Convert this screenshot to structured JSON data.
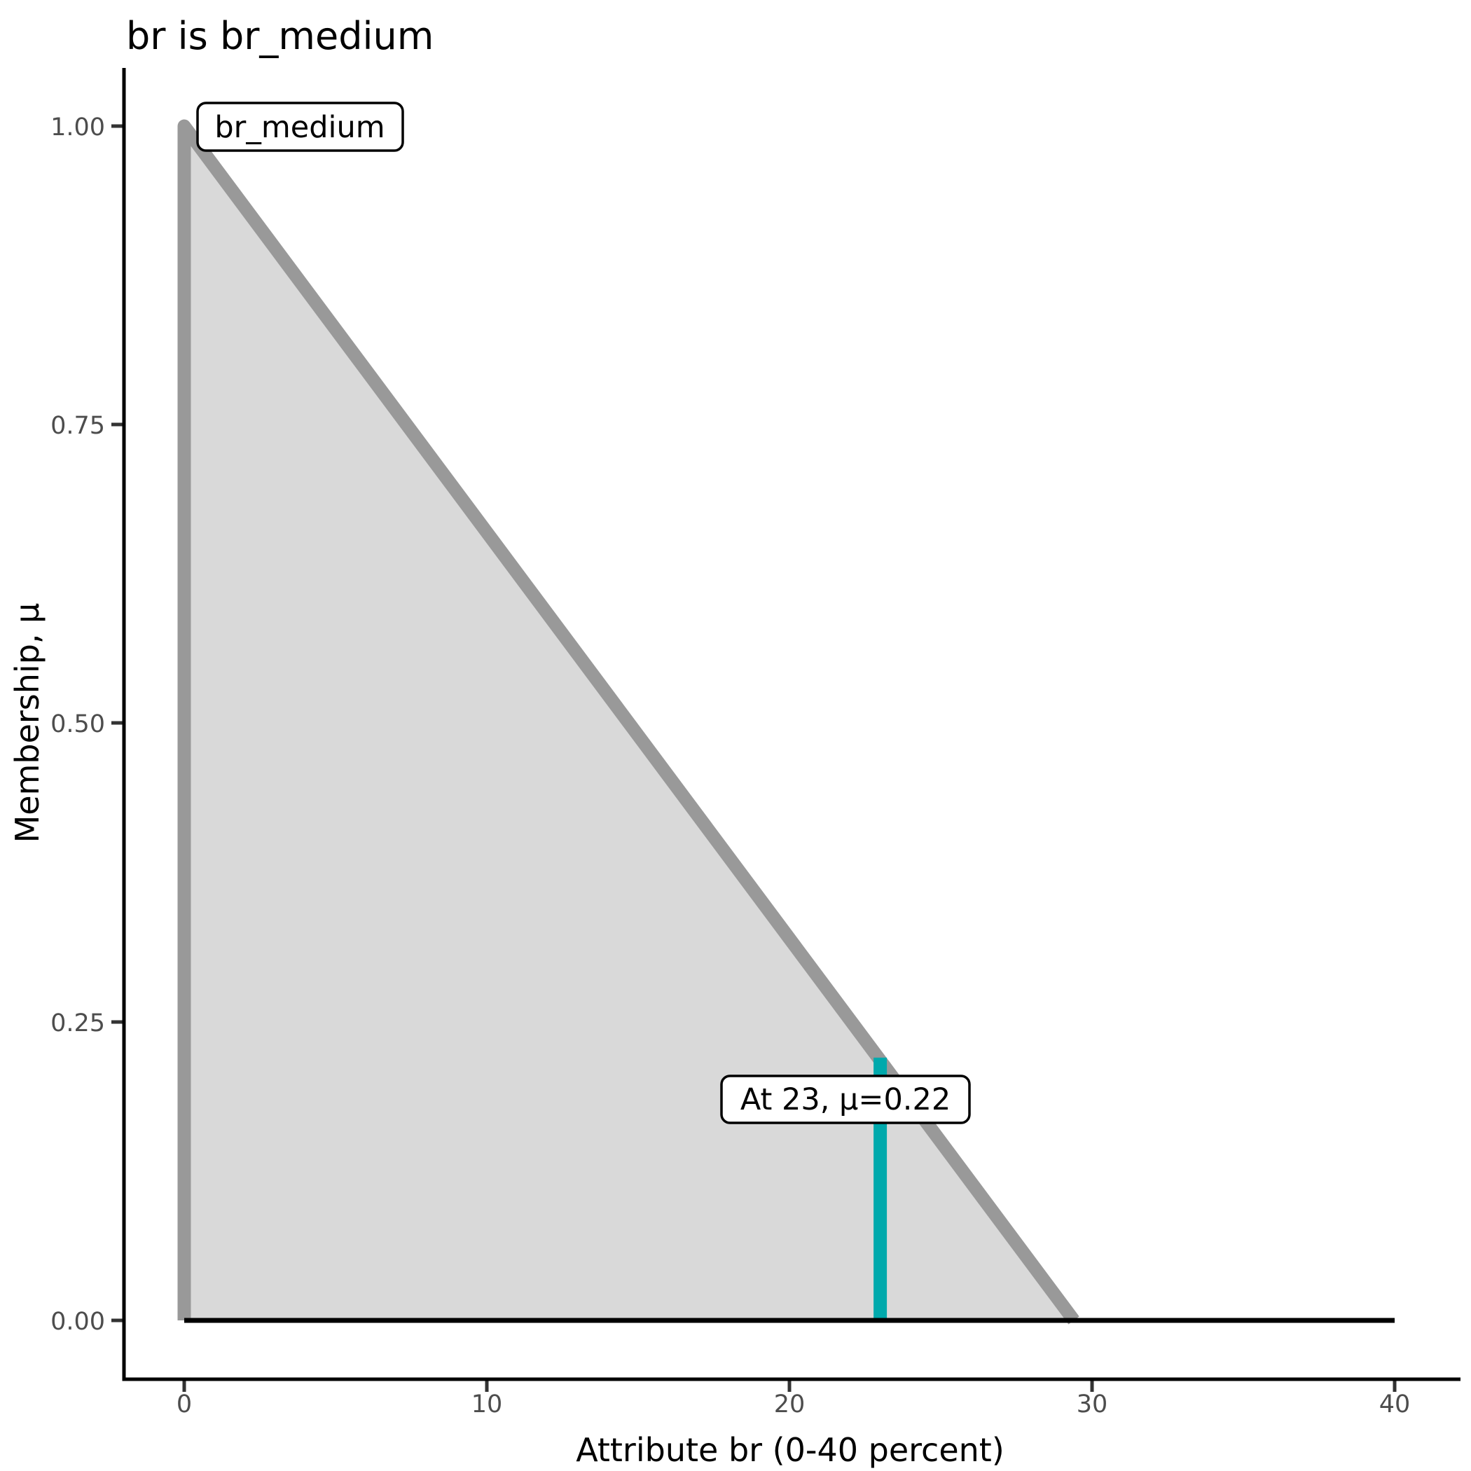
{
  "title": "br is br_medium",
  "axes": {
    "x": {
      "label": "Attribute br (0-40 percent)",
      "ticks": [
        "0",
        "10",
        "20",
        "30",
        "40"
      ]
    },
    "y": {
      "label": "Membership, μ",
      "ticks": [
        "1.00",
        "0.75",
        "0.50",
        "0.25",
        "0.00"
      ]
    }
  },
  "annotations": {
    "set_label": "br_medium",
    "crisp_label": "At 23, μ=0.22"
  },
  "colors": {
    "outline": "#999999",
    "fill": "#D9D9D9",
    "crisp": "#00A9AC",
    "baseline": "#000000",
    "tick_text": "#4D4D4D",
    "axis": "#000000"
  },
  "chart_data": {
    "type": "area",
    "title": "br is br_medium",
    "xlabel": "Attribute br (0-40 percent)",
    "ylabel": "Membership, μ",
    "xlim": [
      0,
      40
    ],
    "ylim": [
      0,
      1
    ],
    "x_ticks": [
      0,
      10,
      20,
      30,
      40
    ],
    "y_ticks": [
      1.0,
      0.75,
      0.5,
      0.25,
      0.0
    ],
    "grid": false,
    "legend": false,
    "series": [
      {
        "name": "br_medium",
        "role": "membership-function",
        "x": [
          0,
          0,
          29.4,
          40
        ],
        "y": [
          0,
          1,
          0,
          0
        ],
        "line_color": "#999999",
        "fill_color": "#D9D9D9"
      },
      {
        "name": "crisp-input",
        "role": "vertical-marker",
        "x": [
          23,
          23
        ],
        "y": [
          0,
          0.22
        ],
        "line_color": "#00A9AC"
      }
    ],
    "annotations": [
      {
        "text": "br_medium",
        "x": 0.5,
        "y": 1.0
      },
      {
        "text": "At 23, μ=0.22",
        "x": 23,
        "y": 0.2
      }
    ]
  }
}
